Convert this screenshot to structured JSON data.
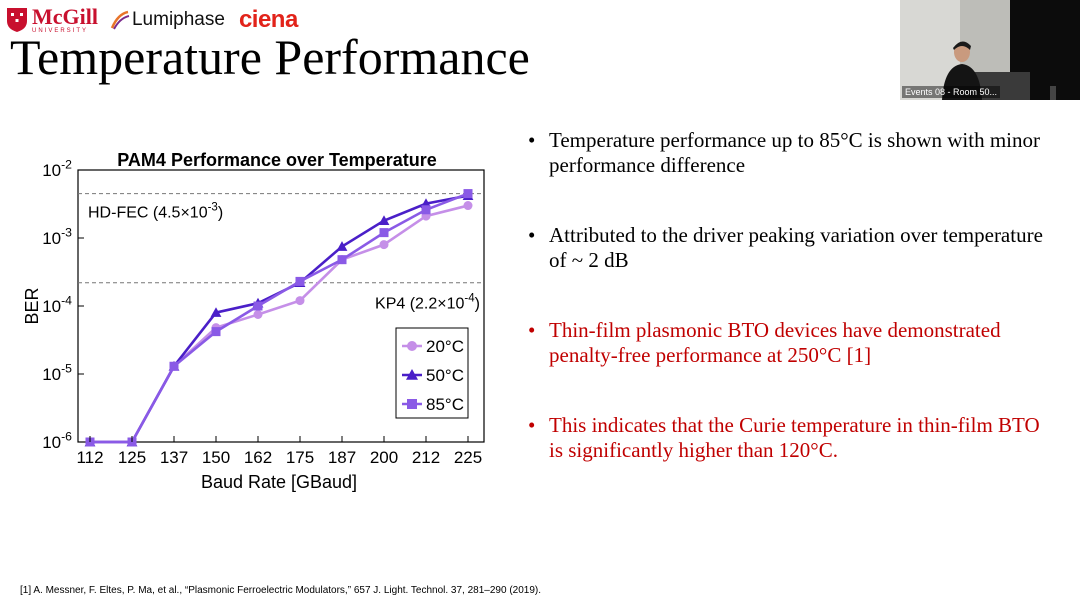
{
  "logos": {
    "mcgill_name": "McGill",
    "mcgill_sub": "UNIVERSITY",
    "lumiphase": "Lumiphase",
    "ciena": "ciena"
  },
  "title": "Temperature Performance",
  "webcam": {
    "label": "Events 08 - Room 50..."
  },
  "bullets": [
    {
      "text": "Temperature performance up to 85°C is shown with minor performance difference",
      "color": "#000000"
    },
    {
      "text": "Attributed to the driver peaking variation over temperature of ~ 2 dB",
      "color": "#000000"
    },
    {
      "text": "Thin-film plasmonic BTO devices have demonstrated penalty-free performance at 250°C [1]",
      "color": "#c00000"
    },
    {
      "text": "This indicates that the Curie temperature in thin-film BTO is significantly higher than 120°C.",
      "color": "#c00000"
    }
  ],
  "footnote": "[1] A. Messner, F. Eltes, P. Ma, et al., “Plasmonic Ferroelectric Modulators,” 657 J. Light. Technol. 37, 281–290 (2019).",
  "chart_data": {
    "type": "line",
    "title": "PAM4 Performance over Temperature",
    "xlabel": "Baud Rate [GBaud]",
    "ylabel": "BER",
    "yscale": "log",
    "ylim": [
      1e-06,
      0.01
    ],
    "categories": [
      "112",
      "125",
      "137",
      "150",
      "162",
      "175",
      "187",
      "200",
      "212",
      "225"
    ],
    "yticks": [
      {
        "value": 0.01,
        "base": "10",
        "exp": "-2"
      },
      {
        "value": 0.001,
        "base": "10",
        "exp": "-3"
      },
      {
        "value": 0.0001,
        "base": "10",
        "exp": "-4"
      },
      {
        "value": 1e-05,
        "base": "10",
        "exp": "-5"
      },
      {
        "value": 1e-06,
        "base": "10",
        "exp": "-6"
      }
    ],
    "series": [
      {
        "name": "20°C",
        "marker": "circle",
        "color": "#c58fe8",
        "values": [
          1e-06,
          1e-06,
          1.3e-05,
          4.8e-05,
          7.5e-05,
          0.00012,
          0.00048,
          0.0008,
          0.0021,
          0.003
        ]
      },
      {
        "name": "50°C",
        "marker": "triangle",
        "color": "#4a1fc8",
        "values": [
          1e-06,
          1e-06,
          1.3e-05,
          8e-05,
          0.00011,
          0.00022,
          0.00075,
          0.0018,
          0.0032,
          0.0042
        ]
      },
      {
        "name": "85°C",
        "marker": "square",
        "color": "#8a5ae6",
        "values": [
          1e-06,
          1e-06,
          1.3e-05,
          4.2e-05,
          0.0001,
          0.00023,
          0.00048,
          0.0012,
          0.0026,
          0.0045
        ]
      }
    ],
    "thresholds": [
      {
        "value": 0.0045,
        "label": "HD-FEC (4.5×10",
        "exp": "-3",
        "close": ")",
        "label_position": "left"
      },
      {
        "value": 0.00022,
        "label": "KP4 (2.2×10",
        "exp": "-4",
        "close": ")",
        "label_position": "right"
      }
    ],
    "grid": false,
    "legend_position": "lower-right"
  }
}
